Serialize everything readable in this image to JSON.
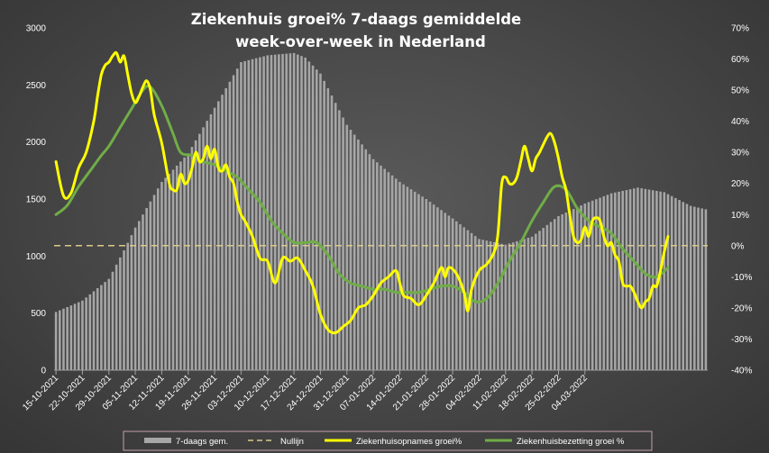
{
  "chart_data": {
    "type": "bar+line",
    "title_line1": "Ziekenhuis groei% 7-daags gemiddelde",
    "title_line2": "week-over-week in Nederland",
    "y_left": {
      "min": 0,
      "max": 3000,
      "ticks": [
        0,
        500,
        1000,
        1500,
        2000,
        2500,
        3000
      ]
    },
    "y_right": {
      "min": -40,
      "max": 70,
      "ticks": [
        "-40%",
        "-30%",
        "-20%",
        "-10%",
        "0%",
        "10%",
        "20%",
        "30%",
        "40%",
        "50%",
        "60%",
        "70%"
      ],
      "tick_values": [
        -40,
        -30,
        -20,
        -10,
        0,
        10,
        20,
        30,
        40,
        50,
        60,
        70
      ]
    },
    "x_tick_labels": [
      "15-10-2021",
      "22-10-2021",
      "29-10-2021",
      "05-11-2021",
      "12-11-2021",
      "19-11-2021",
      "26-11-2021",
      "03-12-2021",
      "10-12-2021",
      "17-12-2021",
      "24-12-2021",
      "31-12-2021",
      "07-01-2022",
      "14-01-2022",
      "21-01-2022",
      "28-01-2022",
      "04-02-2022",
      "11-02-2022",
      "18-02-2022",
      "25-02-2022",
      "04-03-2022"
    ],
    "bars_key": [
      [
        0,
        510
      ],
      [
        7,
        610
      ],
      [
        14,
        800
      ],
      [
        18,
        1050
      ],
      [
        21,
        1250
      ],
      [
        28,
        1650
      ],
      [
        35,
        1900
      ],
      [
        42,
        2300
      ],
      [
        49,
        2700
      ],
      [
        56,
        2760
      ],
      [
        63,
        2780
      ],
      [
        66,
        2740
      ],
      [
        70,
        2600
      ],
      [
        77,
        2150
      ],
      [
        84,
        1850
      ],
      [
        91,
        1650
      ],
      [
        98,
        1500
      ],
      [
        105,
        1330
      ],
      [
        112,
        1150
      ],
      [
        119,
        1100
      ],
      [
        126,
        1170
      ],
      [
        133,
        1350
      ],
      [
        140,
        1460
      ],
      [
        147,
        1550
      ],
      [
        154,
        1600
      ],
      [
        161,
        1560
      ],
      [
        168,
        1440
      ],
      [
        172,
        1410
      ]
    ],
    "series": [
      {
        "name": "7-daags gem.",
        "kind": "bar",
        "color": "#a6a6a6"
      },
      {
        "name": "Nullijn",
        "kind": "dashed",
        "color": "#d9c98a",
        "value": 0
      },
      {
        "name": "Ziekenhuisopnames groei%",
        "kind": "line",
        "color": "#ffff00",
        "points": [
          [
            0,
            27
          ],
          [
            2,
            16
          ],
          [
            4,
            17
          ],
          [
            6,
            25
          ],
          [
            8,
            30
          ],
          [
            10,
            40
          ],
          [
            11,
            48
          ],
          [
            12,
            55
          ],
          [
            13,
            58
          ],
          [
            14,
            59
          ],
          [
            15,
            61
          ],
          [
            16,
            62
          ],
          [
            17,
            59
          ],
          [
            18,
            61
          ],
          [
            19,
            55
          ],
          [
            20,
            49
          ],
          [
            21,
            46
          ],
          [
            22,
            48
          ],
          [
            23,
            51
          ],
          [
            24,
            53
          ],
          [
            25,
            50
          ],
          [
            26,
            42
          ],
          [
            28,
            33
          ],
          [
            30,
            20
          ],
          [
            31,
            18
          ],
          [
            32,
            18
          ],
          [
            33,
            23
          ],
          [
            34,
            20
          ],
          [
            35,
            21
          ],
          [
            36,
            25
          ],
          [
            37,
            30
          ],
          [
            38,
            27
          ],
          [
            39,
            28
          ],
          [
            40,
            32
          ],
          [
            41,
            28
          ],
          [
            42,
            31
          ],
          [
            43,
            25
          ],
          [
            44,
            24
          ],
          [
            45,
            26
          ],
          [
            46,
            22
          ],
          [
            47,
            20
          ],
          [
            48,
            14
          ],
          [
            49,
            10
          ],
          [
            50,
            8
          ],
          [
            52,
            3
          ],
          [
            54,
            -4
          ],
          [
            56,
            -5
          ],
          [
            58,
            -12
          ],
          [
            60,
            -4
          ],
          [
            62,
            -5
          ],
          [
            64,
            -4
          ],
          [
            66,
            -8
          ],
          [
            68,
            -13
          ],
          [
            70,
            -22
          ],
          [
            72,
            -27
          ],
          [
            74,
            -28
          ],
          [
            76,
            -26
          ],
          [
            78,
            -24
          ],
          [
            80,
            -20
          ],
          [
            82,
            -19
          ],
          [
            84,
            -16
          ],
          [
            86,
            -12
          ],
          [
            88,
            -10
          ],
          [
            90,
            -8
          ],
          [
            91,
            -12
          ],
          [
            92,
            -16
          ],
          [
            94,
            -17
          ],
          [
            96,
            -19
          ],
          [
            98,
            -16
          ],
          [
            100,
            -12
          ],
          [
            102,
            -7
          ],
          [
            103,
            -10
          ],
          [
            104,
            -7
          ],
          [
            106,
            -9
          ],
          [
            108,
            -15
          ],
          [
            109,
            -21
          ],
          [
            110,
            -14
          ],
          [
            112,
            -8
          ],
          [
            114,
            -6
          ],
          [
            116,
            -2
          ],
          [
            117,
            4
          ],
          [
            118,
            20
          ],
          [
            119,
            22
          ],
          [
            120,
            20
          ],
          [
            121,
            20
          ],
          [
            122,
            22
          ],
          [
            123,
            27
          ],
          [
            124,
            32
          ],
          [
            125,
            28
          ],
          [
            126,
            24
          ],
          [
            127,
            28
          ],
          [
            128,
            30
          ],
          [
            130,
            35
          ],
          [
            131,
            36
          ],
          [
            132,
            33
          ],
          [
            133,
            28
          ],
          [
            134,
            22
          ],
          [
            135,
            18
          ],
          [
            136,
            10
          ],
          [
            137,
            3
          ],
          [
            138,
            1
          ],
          [
            139,
            2
          ],
          [
            140,
            6
          ],
          [
            141,
            3
          ],
          [
            142,
            8
          ],
          [
            143,
            9
          ],
          [
            144,
            8
          ],
          [
            145,
            3
          ],
          [
            146,
            0
          ],
          [
            147,
            1
          ],
          [
            148,
            -3
          ],
          [
            149,
            -5
          ],
          [
            150,
            -12
          ],
          [
            151,
            -13
          ],
          [
            152,
            -13
          ],
          [
            153,
            -15
          ],
          [
            154,
            -18
          ],
          [
            155,
            -20
          ],
          [
            156,
            -18
          ],
          [
            157,
            -17
          ],
          [
            158,
            -13
          ],
          [
            159,
            -13
          ],
          [
            160,
            -8
          ],
          [
            161,
            -2
          ],
          [
            162,
            3
          ]
        ]
      },
      {
        "name": "Ziekenhuisbezetting groei %",
        "kind": "line",
        "color": "#70ad47",
        "points": [
          [
            0,
            10
          ],
          [
            3,
            13
          ],
          [
            6,
            19
          ],
          [
            9,
            24
          ],
          [
            12,
            29
          ],
          [
            14,
            32
          ],
          [
            17,
            38
          ],
          [
            20,
            44
          ],
          [
            23,
            50
          ],
          [
            25,
            51
          ],
          [
            28,
            45
          ],
          [
            31,
            36
          ],
          [
            33,
            30
          ],
          [
            36,
            29
          ],
          [
            39,
            27
          ],
          [
            42,
            26
          ],
          [
            45,
            24
          ],
          [
            48,
            22
          ],
          [
            51,
            18
          ],
          [
            54,
            14
          ],
          [
            57,
            8
          ],
          [
            60,
            4
          ],
          [
            63,
            1
          ],
          [
            66,
            1
          ],
          [
            69,
            1
          ],
          [
            72,
            -3
          ],
          [
            75,
            -9
          ],
          [
            78,
            -12
          ],
          [
            81,
            -13
          ],
          [
            84,
            -14
          ],
          [
            87,
            -14
          ],
          [
            90,
            -15
          ],
          [
            93,
            -15
          ],
          [
            96,
            -15
          ],
          [
            99,
            -14
          ],
          [
            102,
            -13
          ],
          [
            105,
            -13
          ],
          [
            108,
            -15
          ],
          [
            111,
            -18
          ],
          [
            114,
            -17
          ],
          [
            117,
            -12
          ],
          [
            120,
            -5
          ],
          [
            123,
            1
          ],
          [
            126,
            8
          ],
          [
            129,
            14
          ],
          [
            132,
            19
          ],
          [
            135,
            18
          ],
          [
            138,
            12
          ],
          [
            141,
            8
          ],
          [
            144,
            6
          ],
          [
            147,
            4
          ],
          [
            150,
            -1
          ],
          [
            153,
            -5
          ],
          [
            156,
            -9
          ],
          [
            159,
            -10
          ],
          [
            162,
            -7
          ]
        ]
      }
    ],
    "x_range": [
      0,
      172
    ],
    "legend_position": "bottom",
    "grid": false
  }
}
